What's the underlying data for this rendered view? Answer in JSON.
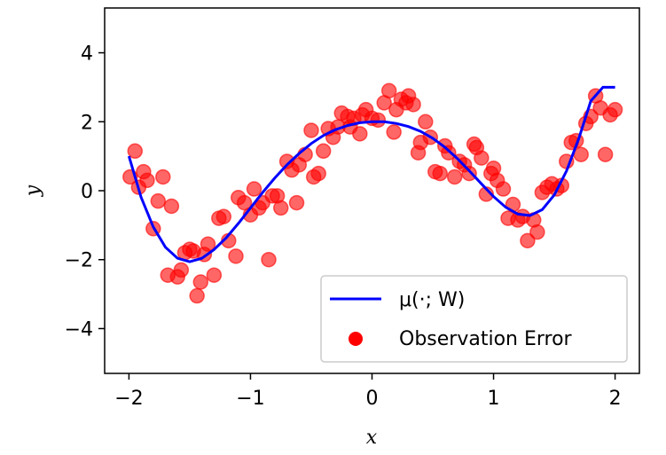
{
  "chart_data": {
    "type": "scatter",
    "xlabel": "x",
    "ylabel": "y",
    "xlim": [
      -2.2,
      2.2
    ],
    "ylim": [
      -5.3,
      5.3
    ],
    "x_ticks": [
      -2,
      -1,
      0,
      1,
      2
    ],
    "x_tick_labels": [
      "−2",
      "−1",
      "0",
      "1",
      "2"
    ],
    "y_ticks": [
      -4,
      -2,
      0,
      2,
      4
    ],
    "y_tick_labels": [
      "−4",
      "−2",
      "0",
      "2",
      "4"
    ],
    "grid": false,
    "legend_position": "lower-right",
    "series": [
      {
        "name": "μ(·; W)",
        "kind": "line",
        "color": "#0000ff",
        "x": [
          -2.0,
          -1.9,
          -1.8,
          -1.7,
          -1.6,
          -1.5,
          -1.4,
          -1.3,
          -1.2,
          -1.1,
          -1.0,
          -0.9,
          -0.8,
          -0.7,
          -0.6,
          -0.5,
          -0.4,
          -0.3,
          -0.2,
          -0.1,
          0.0,
          0.1,
          0.2,
          0.3,
          0.4,
          0.5,
          0.6,
          0.7,
          0.8,
          0.9,
          1.0,
          1.1,
          1.2,
          1.3,
          1.4,
          1.5,
          1.6,
          1.7,
          1.8,
          1.9,
          2.0
        ],
        "y": [
          1.0,
          -0.19,
          -1.05,
          -1.64,
          -1.96,
          -2.06,
          -1.96,
          -1.71,
          -1.37,
          -0.95,
          -0.5,
          -0.05,
          0.37,
          0.75,
          1.08,
          1.37,
          1.6,
          1.77,
          1.89,
          1.97,
          2.0,
          2.0,
          1.95,
          1.86,
          1.72,
          1.52,
          1.26,
          0.94,
          0.58,
          0.2,
          -0.17,
          -0.48,
          -0.68,
          -0.72,
          -0.55,
          -0.12,
          0.57,
          1.5,
          2.6,
          3.0,
          3.0
        ]
      },
      {
        "name": "Observation Error",
        "kind": "scatter",
        "color": "#ff0000",
        "x": [
          -1.99,
          -1.95,
          -1.92,
          -1.88,
          -1.85,
          -1.8,
          -1.76,
          -1.72,
          -1.68,
          -1.65,
          -1.6,
          -1.57,
          -1.54,
          -1.5,
          -1.47,
          -1.44,
          -1.41,
          -1.38,
          -1.35,
          -1.3,
          -1.26,
          -1.22,
          -1.18,
          -1.12,
          -1.1,
          -1.05,
          -1.0,
          -0.97,
          -0.93,
          -0.9,
          -0.85,
          -0.82,
          -0.78,
          -0.75,
          -0.7,
          -0.66,
          -0.62,
          -0.6,
          -0.55,
          -0.5,
          -0.48,
          -0.44,
          -0.4,
          -0.36,
          -0.32,
          -0.28,
          -0.25,
          -0.2,
          -0.18,
          -0.15,
          -0.1,
          -0.08,
          -0.05,
          0.0,
          0.05,
          0.1,
          0.14,
          0.18,
          0.2,
          0.24,
          0.28,
          0.3,
          0.34,
          0.38,
          0.4,
          0.44,
          0.48,
          0.52,
          0.56,
          0.6,
          0.63,
          0.68,
          0.72,
          0.76,
          0.8,
          0.84,
          0.86,
          0.9,
          0.94,
          0.98,
          1.0,
          1.03,
          1.08,
          1.12,
          1.16,
          1.2,
          1.24,
          1.28,
          1.33,
          1.36,
          1.4,
          1.44,
          1.48,
          1.52,
          1.56,
          1.6,
          1.64,
          1.68,
          1.72,
          1.76,
          1.8,
          1.84,
          1.88,
          1.92,
          1.96,
          2.0
        ],
        "y": [
          0.4,
          1.15,
          0.1,
          0.55,
          0.3,
          -1.1,
          -0.3,
          0.4,
          -2.45,
          -0.45,
          -2.5,
          -2.3,
          -1.8,
          -1.7,
          -1.75,
          -3.05,
          -2.65,
          -1.85,
          -1.55,
          -2.45,
          -0.8,
          -0.75,
          -1.45,
          -1.9,
          -0.2,
          -0.35,
          -0.7,
          0.05,
          -0.5,
          -0.35,
          -2.0,
          -0.15,
          -0.15,
          -0.5,
          0.85,
          0.6,
          -0.35,
          0.75,
          1.05,
          1.75,
          0.4,
          0.5,
          1.15,
          1.8,
          1.55,
          1.85,
          2.25,
          2.15,
          1.85,
          2.1,
          1.65,
          2.2,
          2.35,
          2.1,
          2.05,
          2.55,
          2.9,
          1.7,
          2.35,
          2.65,
          2.55,
          2.75,
          2.5,
          1.1,
          1.4,
          2.0,
          1.55,
          0.55,
          0.5,
          1.3,
          1.1,
          0.4,
          0.85,
          0.75,
          0.5,
          1.35,
          1.25,
          0.95,
          -0.1,
          0.5,
          0.65,
          0.3,
          0.05,
          -0.8,
          -0.4,
          -0.85,
          -0.75,
          -1.45,
          -0.85,
          -1.2,
          -0.05,
          0.1,
          0.2,
          0.05,
          0.15,
          0.85,
          1.4,
          1.45,
          1.05,
          1.95,
          2.15,
          2.75,
          2.4,
          1.05,
          2.2,
          2.35
        ]
      }
    ]
  }
}
